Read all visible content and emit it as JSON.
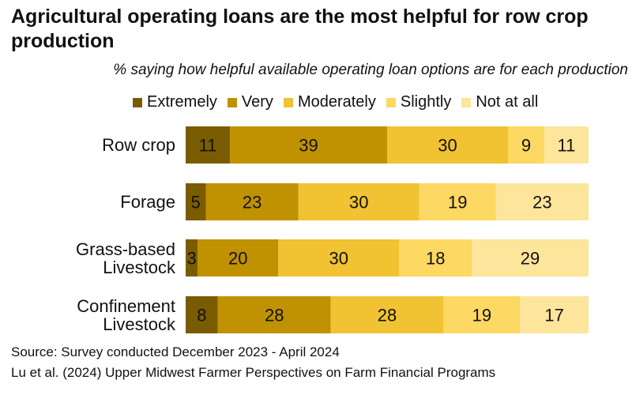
{
  "title": "Agricultural operating loans are the most helpful for row crop production",
  "subtitle": "% saying how helpful available operating loan options are for each production",
  "source_lines": [
    "Source: Survey conducted December 2023 - April 2024",
    "Lu et al. (2024) Upper Midwest Farmer Perspectives on Farm Financial Programs"
  ],
  "chart_data": {
    "type": "bar",
    "orientation": "horizontal",
    "stacked": true,
    "legend_position": "top",
    "grid": false,
    "categories": [
      "Row crop",
      "Forage",
      "Grass-based Livestock",
      "Confinement Livestock"
    ],
    "category_lines": [
      [
        "Row crop"
      ],
      [
        "Forage"
      ],
      [
        "Grass-based",
        "Livestock"
      ],
      [
        "Confinement",
        "Livestock"
      ]
    ],
    "series": [
      {
        "name": "Extremely",
        "color": "#7a5c00",
        "values": [
          11,
          5,
          3,
          8
        ]
      },
      {
        "name": "Very",
        "color": "#c09100",
        "values": [
          39,
          23,
          20,
          28
        ]
      },
      {
        "name": "Moderately",
        "color": "#f1c232",
        "values": [
          30,
          30,
          30,
          28
        ]
      },
      {
        "name": "Slightly",
        "color": "#fdd862",
        "values": [
          9,
          19,
          18,
          19
        ]
      },
      {
        "name": "Not at all",
        "color": "#fde59b",
        "values": [
          11,
          23,
          29,
          17
        ]
      }
    ],
    "xlim": [
      0,
      100
    ]
  }
}
